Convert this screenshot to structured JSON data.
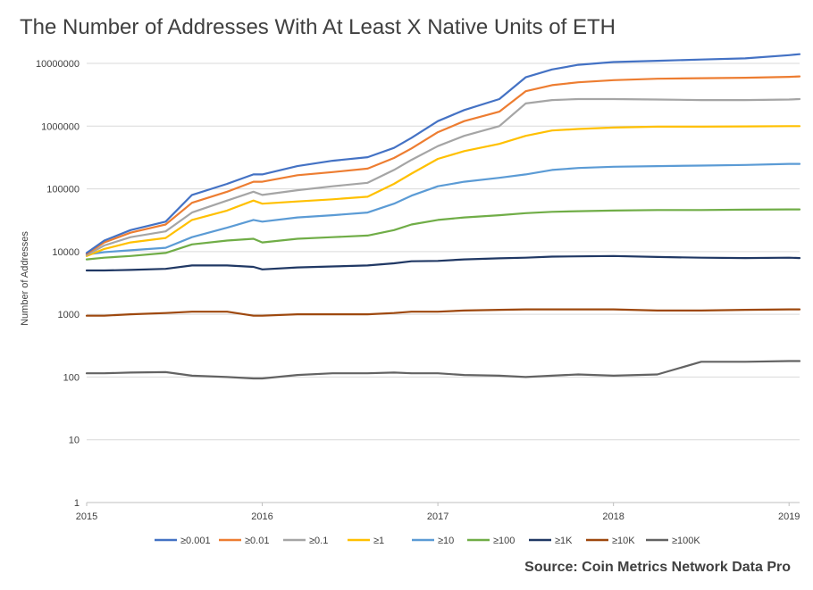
{
  "chart_data": {
    "type": "line",
    "title": "The Number of Addresses With At Least X Native Units of ETH",
    "xlabel": "",
    "ylabel": "Number of Addresses",
    "yscale": "log",
    "ylim": [
      1,
      10000000
    ],
    "xlim": [
      2015.0,
      2019.06
    ],
    "x_ticks": [
      "2015",
      "2016",
      "2017",
      "2018",
      "2019"
    ],
    "y_ticks": [
      "1",
      "10",
      "100",
      "1000",
      "10000",
      "100000",
      "1000000",
      "10000000"
    ],
    "grid": true,
    "legend_position": "bottom",
    "source": "Source: Coin Metrics Network Data Pro",
    "x": [
      2015.0,
      2015.1,
      2015.25,
      2015.45,
      2015.6,
      2015.8,
      2015.95,
      2016.0,
      2016.2,
      2016.4,
      2016.6,
      2016.75,
      2016.85,
      2017.0,
      2017.15,
      2017.35,
      2017.5,
      2017.65,
      2017.8,
      2018.0,
      2018.25,
      2018.5,
      2018.75,
      2019.0,
      2019.06
    ],
    "series": [
      {
        "name": "≥0.001",
        "color": "#4472C4",
        "values": [
          9500,
          15000,
          22000,
          30000,
          80000,
          120000,
          170000,
          170000,
          230000,
          280000,
          320000,
          450000,
          650000,
          1200000,
          1800000,
          2700000,
          6000000,
          8000000,
          9500000,
          10500000,
          11000000,
          11500000,
          12000000,
          13500000,
          14000000
        ]
      },
      {
        "name": "≥0.01",
        "color": "#ED7D31",
        "values": [
          9200,
          14000,
          20000,
          27000,
          60000,
          90000,
          130000,
          130000,
          165000,
          185000,
          210000,
          310000,
          440000,
          800000,
          1200000,
          1700000,
          3600000,
          4500000,
          5000000,
          5400000,
          5700000,
          5800000,
          5900000,
          6100000,
          6200000
        ]
      },
      {
        "name": "≥0.1",
        "color": "#A5A5A5",
        "values": [
          8800,
          12500,
          17000,
          21000,
          42000,
          65000,
          90000,
          80000,
          95000,
          110000,
          125000,
          200000,
          290000,
          480000,
          700000,
          1000000,
          2300000,
          2600000,
          2700000,
          2700000,
          2650000,
          2600000,
          2600000,
          2650000,
          2700000
        ]
      },
      {
        "name": "≥1",
        "color": "#FFC000",
        "values": [
          8500,
          11000,
          14000,
          16500,
          32000,
          45000,
          65000,
          58000,
          63000,
          68000,
          75000,
          120000,
          175000,
          300000,
          400000,
          520000,
          700000,
          850000,
          900000,
          950000,
          980000,
          980000,
          990000,
          1000000,
          1000000
        ]
      },
      {
        "name": "≥10",
        "color": "#5B9BD5",
        "values": [
          9000,
          9800,
          10500,
          11500,
          17000,
          24000,
          32000,
          30000,
          35000,
          38000,
          42000,
          58000,
          78000,
          110000,
          130000,
          150000,
          170000,
          200000,
          215000,
          225000,
          230000,
          235000,
          240000,
          250000,
          250000
        ]
      },
      {
        "name": "≥100",
        "color": "#70AD47",
        "values": [
          7500,
          8000,
          8500,
          9500,
          13000,
          15000,
          16000,
          14000,
          16000,
          17000,
          18000,
          22000,
          27000,
          32000,
          35000,
          38000,
          41000,
          43000,
          44000,
          45000,
          46000,
          46000,
          46500,
          47000,
          47000
        ]
      },
      {
        "name": "≥1K",
        "color": "#203864",
        "values": [
          5000,
          5000,
          5100,
          5300,
          6000,
          6000,
          5700,
          5200,
          5600,
          5800,
          6000,
          6500,
          7000,
          7100,
          7500,
          7800,
          8000,
          8300,
          8400,
          8500,
          8200,
          8000,
          7900,
          8000,
          7900
        ]
      },
      {
        "name": "≥10K",
        "color": "#9E480E",
        "values": [
          950,
          950,
          1000,
          1050,
          1100,
          1100,
          950,
          950,
          1000,
          1000,
          1000,
          1050,
          1100,
          1100,
          1150,
          1180,
          1200,
          1200,
          1200,
          1200,
          1150,
          1150,
          1180,
          1200,
          1200
        ]
      },
      {
        "name": "≥100K",
        "color": "#636363",
        "values": [
          115,
          115,
          118,
          120,
          105,
          100,
          95,
          95,
          108,
          115,
          115,
          118,
          115,
          115,
          108,
          105,
          100,
          105,
          110,
          105,
          110,
          175,
          175,
          180,
          180
        ]
      }
    ]
  }
}
